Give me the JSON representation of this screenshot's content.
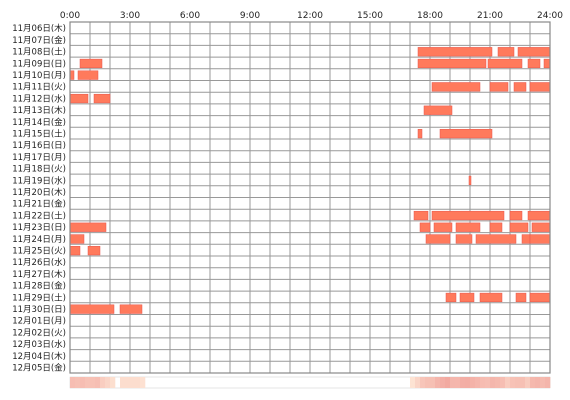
{
  "chart_data": {
    "type": "heatmap",
    "x_tick_labels": [
      "0:00",
      "3:00",
      "6:00",
      "9:00",
      "12:00",
      "15:00",
      "18:00",
      "21:00",
      "24:00"
    ],
    "xlim": [
      0,
      24
    ],
    "grid": true,
    "colors": {
      "bar_fill": "#ff7a5c",
      "bar_edge": "#e8554a",
      "grid_line": "#999999",
      "frame": "#888888",
      "text": "#222222",
      "density_low": "#fde4d4",
      "density_high": "#f2a9a0"
    },
    "rows": [
      {
        "label": "11月06日(木)",
        "segments": []
      },
      {
        "label": "11月07日(金)",
        "segments": []
      },
      {
        "label": "11月08日(土)",
        "segments": [
          [
            17.4,
            21.1
          ],
          [
            21.4,
            22.2
          ],
          [
            22.4,
            24.0
          ]
        ]
      },
      {
        "label": "11月09日(日)",
        "segments": [
          [
            0.5,
            1.6
          ],
          [
            17.4,
            20.8
          ],
          [
            20.9,
            22.6
          ],
          [
            22.9,
            23.5
          ],
          [
            23.7,
            24.0
          ]
        ]
      },
      {
        "label": "11月10日(月)",
        "segments": [
          [
            0.0,
            0.2
          ],
          [
            0.4,
            1.4
          ]
        ]
      },
      {
        "label": "11月11日(火)",
        "segments": [
          [
            18.1,
            20.5
          ],
          [
            21.0,
            21.9
          ],
          [
            22.2,
            22.8
          ],
          [
            23.0,
            24.0
          ]
        ]
      },
      {
        "label": "11月12日(水)",
        "segments": [
          [
            0.0,
            0.9
          ],
          [
            1.2,
            2.0
          ]
        ]
      },
      {
        "label": "11月13日(木)",
        "segments": [
          [
            17.7,
            19.1
          ]
        ]
      },
      {
        "label": "11月14日(金)",
        "segments": []
      },
      {
        "label": "11月15日(土)",
        "segments": [
          [
            17.4,
            17.6
          ],
          [
            18.5,
            21.1
          ]
        ]
      },
      {
        "label": "11月16日(日)",
        "segments": []
      },
      {
        "label": "11月17日(月)",
        "segments": []
      },
      {
        "label": "11月18日(火)",
        "segments": []
      },
      {
        "label": "11月19日(水)",
        "segments": [
          [
            19.95,
            20.05
          ]
        ]
      },
      {
        "label": "11月20日(木)",
        "segments": []
      },
      {
        "label": "11月21日(金)",
        "segments": []
      },
      {
        "label": "11月22日(土)",
        "segments": [
          [
            17.2,
            17.9
          ],
          [
            18.1,
            21.7
          ],
          [
            22.0,
            22.6
          ],
          [
            22.9,
            24.0
          ]
        ]
      },
      {
        "label": "11月23日(日)",
        "segments": [
          [
            0.0,
            1.8
          ],
          [
            17.5,
            18.0
          ],
          [
            18.2,
            19.1
          ],
          [
            19.3,
            20.5
          ],
          [
            21.0,
            21.6
          ],
          [
            22.0,
            22.9
          ],
          [
            23.1,
            24.0
          ]
        ]
      },
      {
        "label": "11月24日(月)",
        "segments": [
          [
            0.0,
            0.7
          ],
          [
            17.8,
            19.0
          ],
          [
            19.3,
            20.1
          ],
          [
            20.3,
            22.3
          ],
          [
            22.6,
            23.0
          ],
          [
            23.0,
            24.0
          ]
        ]
      },
      {
        "label": "11月25日(火)",
        "segments": [
          [
            0.0,
            0.5
          ],
          [
            0.9,
            1.5
          ]
        ]
      },
      {
        "label": "11月26日(水)",
        "segments": []
      },
      {
        "label": "11月27日(木)",
        "segments": []
      },
      {
        "label": "11月28日(金)",
        "segments": []
      },
      {
        "label": "11月29日(土)",
        "segments": [
          [
            18.8,
            19.3
          ],
          [
            19.5,
            20.2
          ],
          [
            20.5,
            21.6
          ],
          [
            22.3,
            22.8
          ],
          [
            23.0,
            24.0
          ]
        ]
      },
      {
        "label": "11月30日(日)",
        "segments": [
          [
            0.0,
            2.2
          ],
          [
            2.5,
            3.6
          ]
        ]
      },
      {
        "label": "12月01日(月)",
        "segments": []
      },
      {
        "label": "12月02日(火)",
        "segments": []
      },
      {
        "label": "12月03日(水)",
        "segments": []
      },
      {
        "label": "12月04日(木)",
        "segments": []
      },
      {
        "label": "12月05日(金)",
        "segments": []
      }
    ]
  }
}
